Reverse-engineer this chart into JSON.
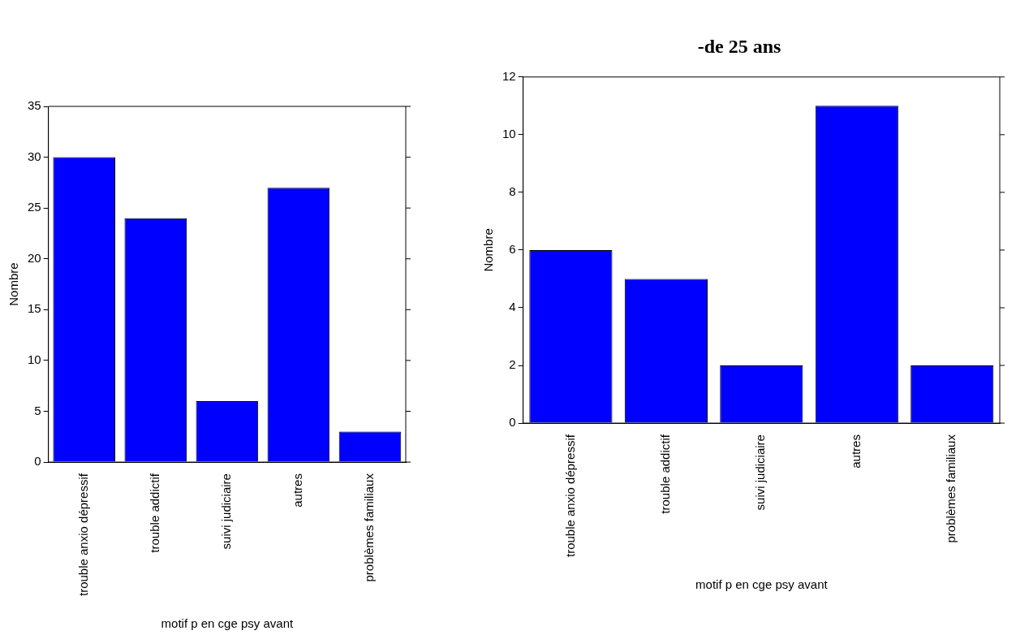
{
  "chart_data": [
    {
      "type": "bar",
      "categories": [
        "trouble anxio dépressif",
        "trouble addictif",
        "suivi judiciaire",
        "autres",
        "problèmes familiaux"
      ],
      "values": [
        30,
        24,
        6,
        27,
        3
      ],
      "color": "#0000ff",
      "ylim": [
        0,
        35
      ],
      "yticks": [
        0,
        5,
        10,
        15,
        20,
        25,
        30,
        35
      ],
      "xlabel": "motif p en cge psy avant",
      "ylabel": "Nombre",
      "grid": false,
      "legend": false
    },
    {
      "type": "bar",
      "title": "-de 25 ans",
      "categories": [
        "trouble anxio dépressif",
        "trouble addictif",
        "suivi judiciaire",
        "autres",
        "problèmes familiaux"
      ],
      "values": [
        6,
        5,
        2,
        11,
        2
      ],
      "color": "#0000ff",
      "ylim": [
        0,
        12
      ],
      "yticks": [
        0,
        2,
        4,
        6,
        8,
        10,
        12
      ],
      "xlabel": "motif p en cge psy avant",
      "ylabel": "Nombre",
      "grid": false,
      "legend": false
    }
  ]
}
